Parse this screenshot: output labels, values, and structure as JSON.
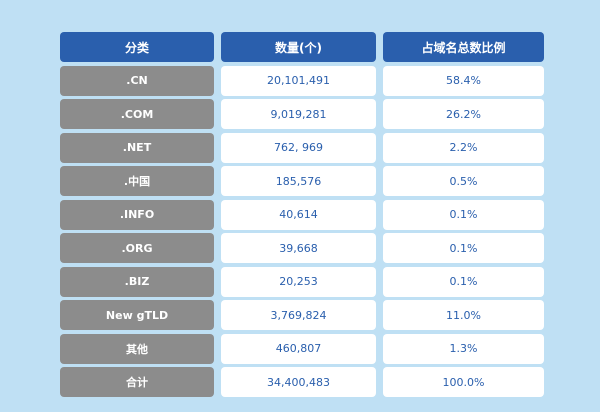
{
  "chart_data": {
    "type": "table",
    "columns": [
      "分类",
      "数量(个)",
      "占域名总数比例"
    ],
    "rows": [
      {
        "category": ".CN",
        "count": "20,101,491",
        "share": "58.4%"
      },
      {
        "category": ".COM",
        "count": "9,019,281",
        "share": "26.2%"
      },
      {
        "category": ".NET",
        "count": "762, 969",
        "share": "2.2%"
      },
      {
        "category": ".中国",
        "count": "185,576",
        "share": "0.5%"
      },
      {
        "category": ".INFO",
        "count": "40,614",
        "share": "0.1%"
      },
      {
        "category": ".ORG",
        "count": "39,668",
        "share": "0.1%"
      },
      {
        "category": ".BIZ",
        "count": "20,253",
        "share": "0.1%"
      },
      {
        "category": "New gTLD",
        "count": "3,769,824",
        "share": "11.0%"
      },
      {
        "category": "其他",
        "count": "460,807",
        "share": "1.3%"
      },
      {
        "category": "合计",
        "count": "34,400,483",
        "share": "100.0%"
      }
    ]
  },
  "colors": {
    "background": "#bfe0f4",
    "header": "#2a5fad",
    "category_cell": "#8c8c8c",
    "value_text": "#2a5fad"
  }
}
